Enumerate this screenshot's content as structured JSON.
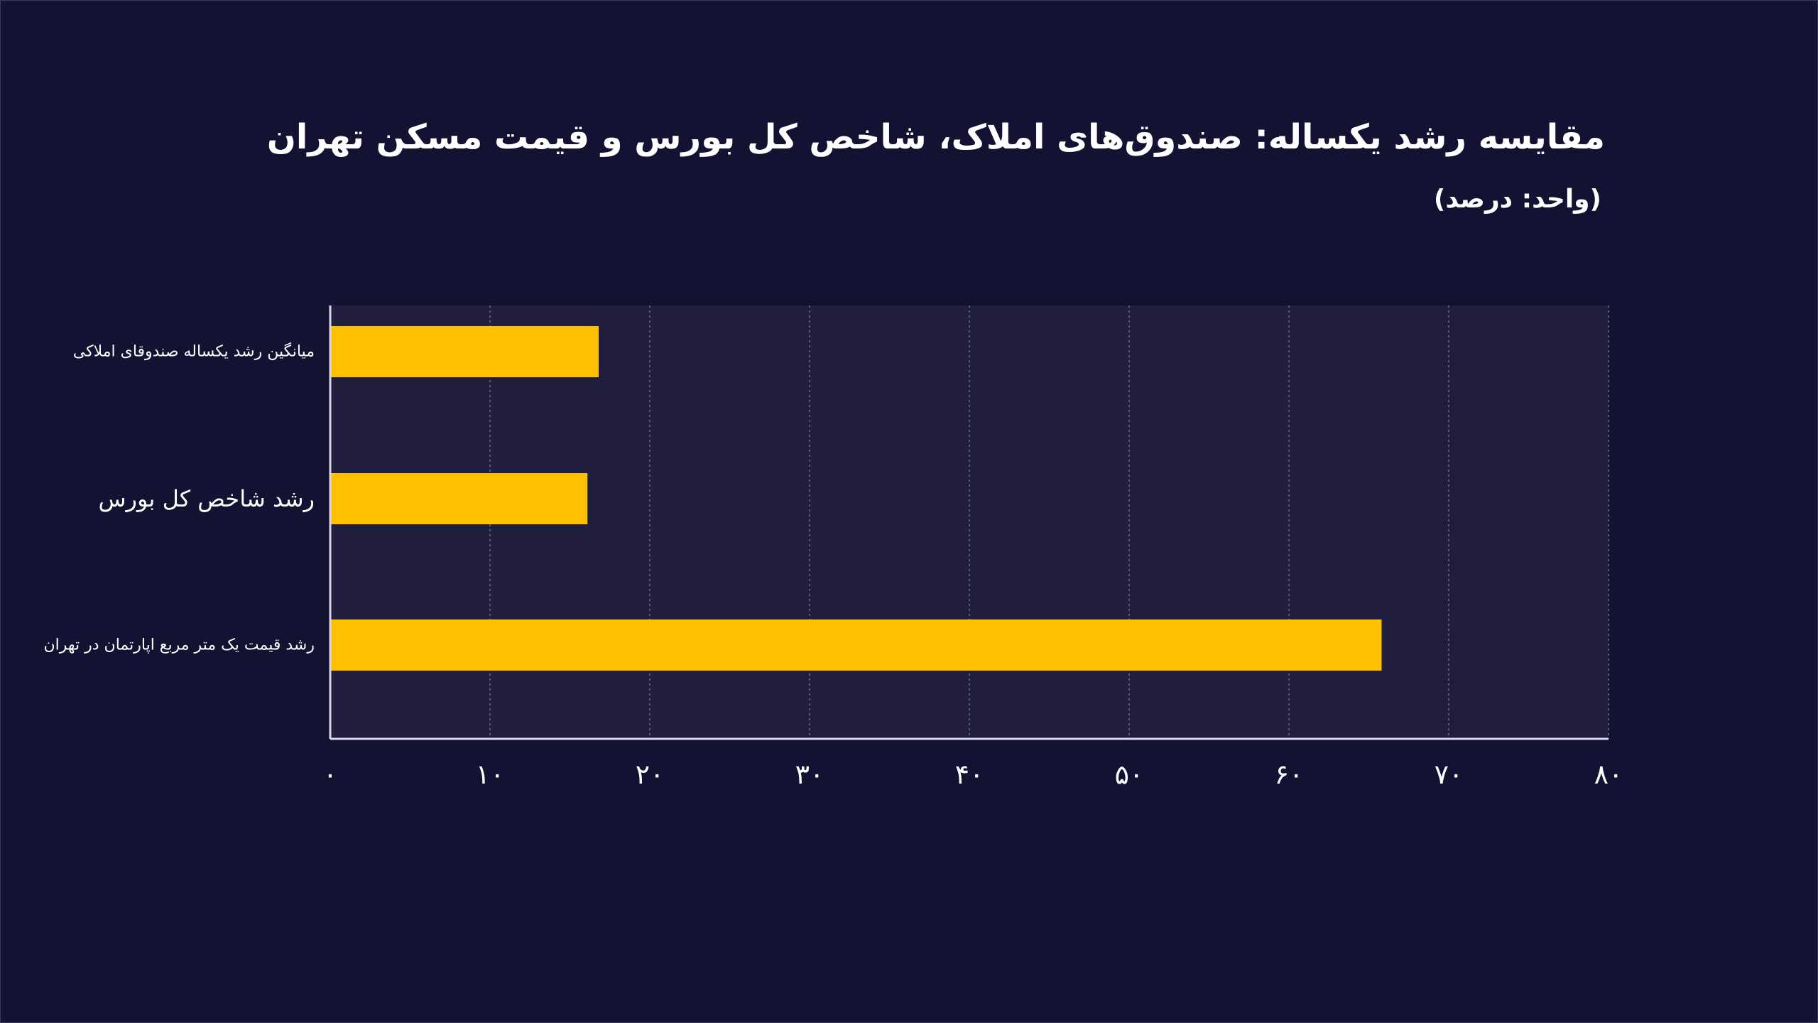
{
  "chart_data": {
    "type": "bar",
    "orientation": "horizontal",
    "title": "مقایسه رشد یکساله: صندوق‌های املاک، شاخص کل بورس و قیمت مسکن تهران",
    "subtitle": "(واحد: درصد)",
    "categories": [
      "میانگین رشد یکساله صندوقای املاکی",
      "رشد شاخص کل بورس",
      "رشد قیمت یک متر مربع اپارتمان در تهران"
    ],
    "values": [
      16.8,
      16.1,
      65.8
    ],
    "xlim": [
      0,
      80
    ],
    "x_ticks": [
      0,
      10,
      20,
      30,
      40,
      50,
      60,
      70,
      80
    ],
    "x_tick_labels": [
      "۰",
      "۱۰",
      "۲۰",
      "۳۰",
      "۴۰",
      "۵۰",
      "۶۰",
      "۷۰",
      "۸۰"
    ],
    "xlabel": "",
    "ylabel": "",
    "grid": true,
    "bar_color": "#FFC000",
    "plot_background": "#201E3C",
    "background": "#141232"
  }
}
